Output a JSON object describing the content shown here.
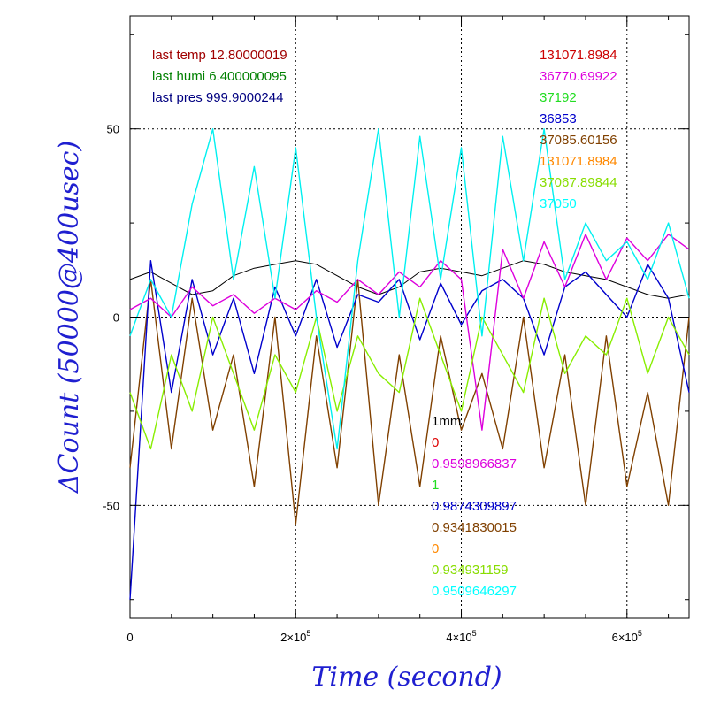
{
  "chart_data": {
    "type": "line",
    "xlabel": "Time (second)",
    "ylabel": "ΔCount (50000@400usec)",
    "xlim": [
      0,
      675000
    ],
    "ylim": [
      -80,
      80
    ],
    "x_ticks": [
      {
        "value": 0,
        "label": "0",
        "exp": ""
      },
      {
        "value": 200000,
        "label": "2×10",
        "exp": "5"
      },
      {
        "value": 400000,
        "label": "4×10",
        "exp": "5"
      },
      {
        "value": 600000,
        "label": "6×10",
        "exp": "5"
      }
    ],
    "y_ticks": [
      {
        "value": 50,
        "label": "50"
      },
      {
        "value": 0,
        "label": "0"
      },
      {
        "value": -50,
        "label": "-50"
      }
    ],
    "grid": "dotted at major ticks",
    "top_left_annotations": [
      {
        "text": "last temp 12.80000019",
        "color": "#a00000"
      },
      {
        "text": "last humi 6.400000095",
        "color": "#008000"
      },
      {
        "text": "last pres 999.9000244",
        "color": "#000080"
      }
    ],
    "top_right_annotations": [
      {
        "text": "131071.8984",
        "color": "#cc0000"
      },
      {
        "text": "36770.69922",
        "color": "#dd00dd"
      },
      {
        "text": "37192",
        "color": "#22dd22"
      },
      {
        "text": "36853",
        "color": "#0000cc"
      },
      {
        "text": "37085.60156",
        "color": "#804000"
      },
      {
        "text": "131071.8984",
        "color": "#ff8800"
      },
      {
        "text": "37067.89844",
        "color": "#88dd00"
      },
      {
        "text": "37050",
        "color": "#00ffff"
      }
    ],
    "bottom_annotations": [
      {
        "text": "1mm",
        "color": "#000000"
      },
      {
        "text": "0",
        "color": "#dd0000"
      },
      {
        "text": "0.9598966837",
        "color": "#dd00dd"
      },
      {
        "text": "1",
        "color": "#22dd22"
      },
      {
        "text": "0.9874309897",
        "color": "#0000cc"
      },
      {
        "text": "0.9341830015",
        "color": "#804000"
      },
      {
        "text": "0",
        "color": "#ff8800"
      },
      {
        "text": "0.934931159",
        "color": "#88dd00"
      },
      {
        "text": "0.9509646297",
        "color": "#00ffff"
      }
    ],
    "series": [
      {
        "color": "#000000",
        "x": [
          0,
          25000,
          50000,
          75000,
          100000,
          125000,
          150000,
          175000,
          200000,
          225000,
          250000,
          275000,
          300000,
          325000,
          350000,
          375000,
          400000,
          425000,
          450000,
          475000,
          500000,
          525000,
          550000,
          575000,
          600000,
          625000,
          650000,
          675000
        ],
        "y": [
          10,
          12,
          9,
          6,
          7,
          11,
          13,
          14,
          15,
          14,
          11,
          8,
          6,
          8,
          12,
          13,
          12,
          11,
          13,
          15,
          14,
          12,
          11,
          10,
          8,
          6,
          5,
          6
        ]
      },
      {
        "color": "#804000",
        "x": [
          0,
          25000,
          50000,
          75000,
          100000,
          125000,
          150000,
          175000,
          200000,
          225000,
          250000,
          275000,
          300000,
          325000,
          350000,
          375000,
          400000,
          425000,
          450000,
          475000,
          500000,
          525000,
          550000,
          575000,
          600000,
          625000,
          650000,
          675000
        ],
        "y": [
          -40,
          10,
          -35,
          5,
          -30,
          -10,
          -45,
          0,
          -55,
          -5,
          -40,
          10,
          -50,
          -10,
          -45,
          -5,
          -30,
          -15,
          -35,
          0,
          -40,
          -10,
          -50,
          -5,
          -45,
          -20,
          -50,
          0
        ]
      },
      {
        "color": "#0000cc",
        "x": [
          0,
          25000,
          50000,
          75000,
          100000,
          125000,
          150000,
          175000,
          200000,
          225000,
          250000,
          275000,
          300000,
          325000,
          350000,
          375000,
          400000,
          425000,
          450000,
          475000,
          500000,
          525000,
          550000,
          575000,
          600000,
          625000,
          650000,
          675000
        ],
        "y": [
          -75,
          15,
          -20,
          10,
          -10,
          5,
          -15,
          8,
          -5,
          10,
          -8,
          6,
          4,
          10,
          -6,
          9,
          -2,
          7,
          10,
          5,
          -10,
          8,
          12,
          6,
          0,
          14,
          5,
          -20
        ]
      },
      {
        "color": "#dd00dd",
        "x": [
          0,
          25000,
          50000,
          75000,
          100000,
          125000,
          150000,
          175000,
          200000,
          225000,
          250000,
          275000,
          300000,
          325000,
          350000,
          375000,
          400000,
          425000,
          450000,
          475000,
          500000,
          525000,
          550000,
          575000,
          600000,
          625000,
          650000,
          675000
        ],
        "y": [
          2,
          5,
          0,
          8,
          3,
          6,
          1,
          5,
          2,
          7,
          4,
          10,
          6,
          12,
          8,
          15,
          10,
          -30,
          18,
          5,
          20,
          8,
          22,
          10,
          21,
          15,
          22,
          18
        ]
      },
      {
        "color": "#88ee00",
        "x": [
          0,
          25000,
          50000,
          75000,
          100000,
          125000,
          150000,
          175000,
          200000,
          225000,
          250000,
          275000,
          300000,
          325000,
          350000,
          375000,
          400000,
          425000,
          450000,
          475000,
          500000,
          525000,
          550000,
          575000,
          600000,
          625000,
          650000,
          675000
        ],
        "y": [
          -20,
          -35,
          -10,
          -25,
          0,
          -15,
          -30,
          -10,
          -20,
          0,
          -25,
          -5,
          -15,
          -20,
          5,
          -10,
          -25,
          0,
          -10,
          -20,
          5,
          -15,
          -5,
          -10,
          5,
          -15,
          0,
          -10
        ]
      },
      {
        "color": "#00f0f0",
        "x": [
          0,
          25000,
          50000,
          75000,
          100000,
          125000,
          150000,
          175000,
          200000,
          225000,
          250000,
          275000,
          300000,
          325000,
          350000,
          375000,
          400000,
          425000,
          450000,
          475000,
          500000,
          525000,
          550000,
          575000,
          600000,
          625000,
          650000,
          675000
        ],
        "y": [
          -5,
          10,
          0,
          30,
          50,
          10,
          40,
          5,
          45,
          0,
          -35,
          15,
          50,
          0,
          48,
          10,
          45,
          -5,
          48,
          15,
          50,
          10,
          25,
          15,
          20,
          10,
          25,
          5
        ]
      }
    ]
  }
}
